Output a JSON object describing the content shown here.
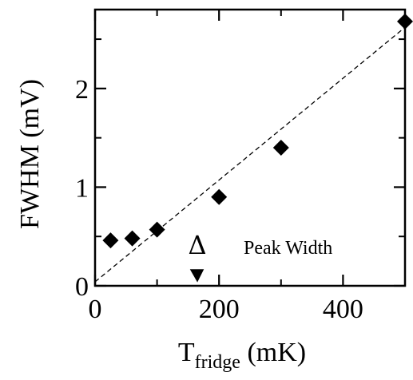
{
  "chart_data": {
    "type": "scatter",
    "xlabel_main": "T",
    "xlabel_sub": "fridge",
    "xlabel_unit": " (mK)",
    "ylabel": "FWHM (mV)",
    "xlim": [
      0,
      500
    ],
    "ylim": [
      0,
      2.8
    ],
    "x_ticks": [
      0,
      200,
      400
    ],
    "x_minor_ticks": [
      100,
      300,
      500
    ],
    "y_ticks": [
      0,
      1,
      2
    ],
    "y_minor_ticks": [
      0.5,
      1.5,
      2.5
    ],
    "points": [
      {
        "x": 25,
        "y": 0.46
      },
      {
        "x": 60,
        "y": 0.48
      },
      {
        "x": 100,
        "y": 0.57
      },
      {
        "x": 200,
        "y": 0.9
      },
      {
        "x": 300,
        "y": 1.4
      },
      {
        "x": 500,
        "y": 2.68
      }
    ],
    "fit_line": {
      "x": [
        0,
        500
      ],
      "y": [
        0.04,
        2.62
      ],
      "style": "dashed"
    },
    "annotations": {
      "delta_symbol": "Δ",
      "delta_x": 165,
      "peak_width_label": "Peak Width"
    },
    "grid": false
  }
}
